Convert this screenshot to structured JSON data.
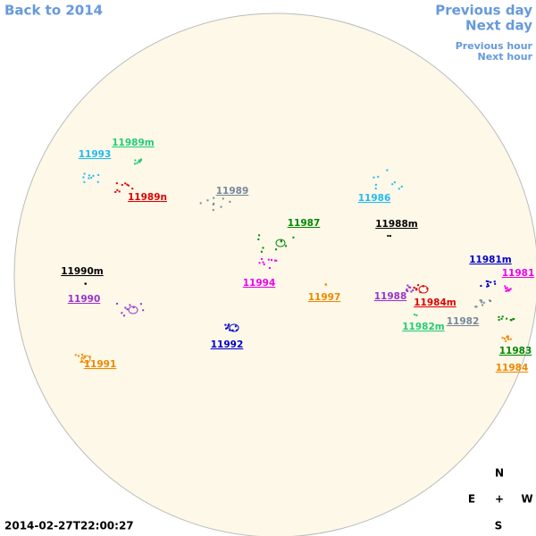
{
  "navigation": {
    "back": "Back to 2014",
    "previous_day": "Previous day",
    "next_day": "Next day",
    "previous_hour": "Previous hour",
    "next_hour": "Next hour"
  },
  "regions": [
    {
      "label": "11989m",
      "color": "#22cc77"
    },
    {
      "label": "11993",
      "color": "#22bbee"
    },
    {
      "label": "11989n",
      "color": "#dd0000"
    },
    {
      "label": "11989",
      "color": "#778899"
    },
    {
      "label": "11986",
      "color": "#22bbee"
    },
    {
      "label": "11987",
      "color": "#008800"
    },
    {
      "label": "11988m",
      "color": "#000000"
    },
    {
      "label": "11990m",
      "color": "#000000"
    },
    {
      "label": "11994",
      "color": "#ee00ee"
    },
    {
      "label": "11997",
      "color": "#ee8800"
    },
    {
      "label": "11988",
      "color": "#9933cc"
    },
    {
      "label": "11981m",
      "color": "#0000cc"
    },
    {
      "label": "11981",
      "color": "#ee00ee"
    },
    {
      "label": "11984m",
      "color": "#dd0000"
    },
    {
      "label": "11990",
      "color": "#9933cc"
    },
    {
      "label": "11982",
      "color": "#778899"
    },
    {
      "label": "11982m",
      "color": "#22cc77"
    },
    {
      "label": "11992",
      "color": "#0000cc"
    },
    {
      "label": "11983",
      "color": "#008800"
    },
    {
      "label": "11991",
      "color": "#ee8800"
    },
    {
      "label": "11984",
      "color": "#ee8800"
    }
  ],
  "compass": {
    "north": "N",
    "east": "E",
    "center": "+",
    "west": "W",
    "south": "S"
  },
  "timestamp": "2014-02-27T22:00:27"
}
